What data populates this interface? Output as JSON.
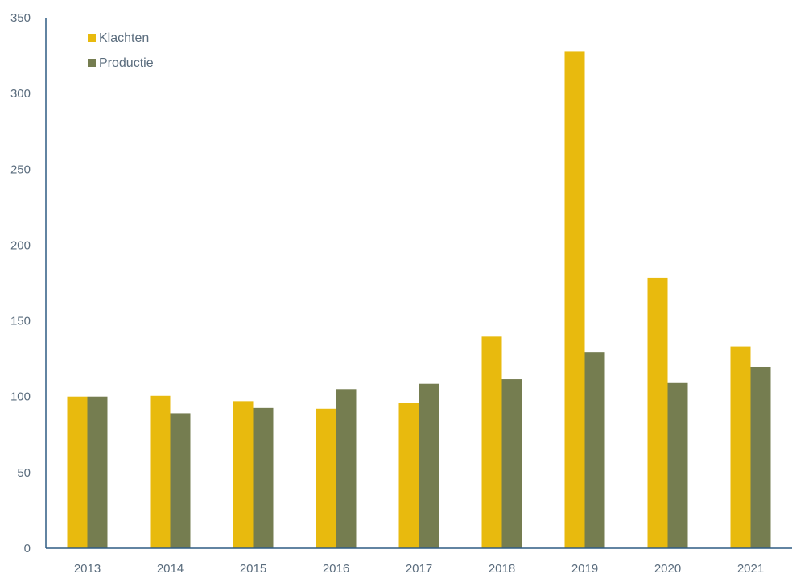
{
  "chart_data": {
    "type": "bar",
    "title": "",
    "xlabel": "",
    "ylabel": "",
    "categories": [
      "2013",
      "2014",
      "2015",
      "2016",
      "2017",
      "2018",
      "2019",
      "2020",
      "2021"
    ],
    "series": [
      {
        "name": "Klachten",
        "color": "#E8BA0E",
        "values": [
          100,
          100.5,
          97,
          92,
          96,
          139.5,
          328,
          178.5,
          133
        ]
      },
      {
        "name": "Productie",
        "color": "#757D50",
        "values": [
          100,
          89,
          92.5,
          105,
          108.5,
          111.5,
          129.5,
          109,
          119.5
        ]
      }
    ],
    "ylim": [
      0,
      350
    ],
    "yticks": [
      "0",
      "50",
      "100",
      "150",
      "200",
      "250",
      "300",
      "350"
    ],
    "legend_position": "top-left",
    "grid": false,
    "axis_color": "#2F5B84",
    "label_color": "#5A6C7D"
  }
}
